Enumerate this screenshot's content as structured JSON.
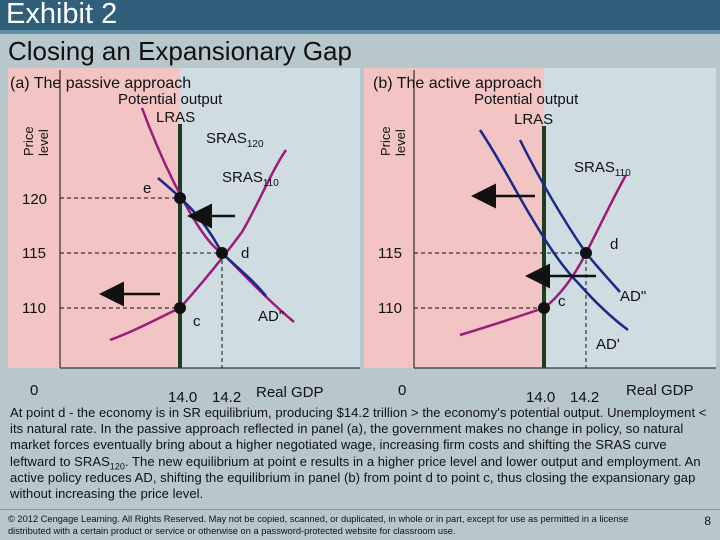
{
  "header": {
    "exhibit": "Exhibit 2",
    "subtitle": "Closing an Expansionary Gap"
  },
  "panel_a": {
    "title": "(a) The passive approach",
    "potential_output": "Potential output",
    "lras": "LRAS",
    "sras120": "SRAS",
    "sras120_sub": "120",
    "sras110": "SRAS",
    "sras110_sub": "110",
    "y_axis_label_1": "Price",
    "y_axis_label_2": "level",
    "y_ticks": [
      "120",
      "115",
      "110"
    ],
    "origin": "0",
    "x_ticks": [
      "14.0",
      "14.2"
    ],
    "x_axis_label": "Real GDP",
    "point_e": "e",
    "point_d": "d",
    "point_c": "c",
    "ad_label": "AD\""
  },
  "panel_b": {
    "title": "(b) The active approach",
    "potential_output": "Potential output",
    "lras": "LRAS",
    "sras110": "SRAS",
    "sras110_sub": "110",
    "y_axis_label_1": "Price",
    "y_axis_label_2": "level",
    "y_ticks": [
      "115",
      "110"
    ],
    "origin": "0",
    "x_ticks": [
      "14.0",
      "14.2"
    ],
    "x_axis_label": "Real GDP",
    "point_d": "d",
    "point_c": "c",
    "ad2_label": "AD\"",
    "ad1_label": "AD'"
  },
  "explanation": {
    "text_before_sub": "At point d - the economy is in SR equilibrium, producing $14.2 trillion > the economy's potential output. Unemployment < its natural rate. In the passive approach reflected in panel (a), the government makes no change in policy, so natural market forces eventually bring about a higher negotiated wage, increasing firm costs and shifting the SRAS curve leftward to SRAS",
    "sub": "120",
    "text_after_sub": ". The new equilibrium at point e results in a higher price level and lower output and employment. An active policy reduces AD, shifting the equilibrium in panel (b) from point d to point c, thus closing the expansionary gap without  increasing the price level."
  },
  "footer": {
    "copyright": "© 2012 Cengage Learning. All Rights Reserved. May not be copied, scanned, or duplicated, in whole or in part, except for use as permitted in a license distributed with a certain product or service or otherwise on a password-protected website for classroom use.",
    "page_number": "8"
  },
  "colors": {
    "header_band": "#2f5f7a",
    "background": "#b7c7cc",
    "gap_region": "#f2c4c4",
    "plot_bg": "#cfdde3",
    "lras_line": "#1e3d1e",
    "sras_curve": "#9b1c7a",
    "ad_curve": "#1a2a8a",
    "arrow": "#111111"
  }
}
